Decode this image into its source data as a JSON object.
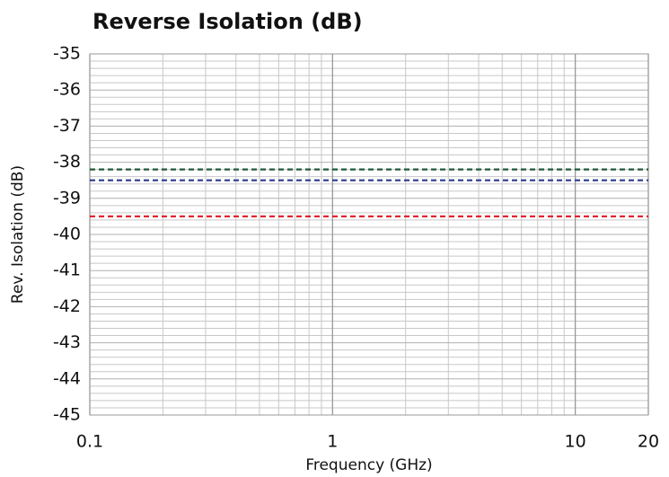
{
  "chart_data": {
    "type": "line",
    "title": "Reverse Isolation (dB)",
    "x_label": "Frequency (GHz)",
    "y_label": "Rev. Isolation (dB)",
    "x": [
      0.1,
      20
    ],
    "series": [
      {
        "color": "#1e5a3a",
        "values": [
          -38.2,
          -38.2
        ]
      },
      {
        "color": "#2b3b8c",
        "values": [
          -38.5,
          -38.5
        ]
      },
      {
        "color": "#e3232f",
        "values": [
          -39.5,
          -39.5
        ]
      }
    ],
    "xlim": [
      0.1,
      20
    ],
    "xticks": [
      0.1,
      1,
      10,
      20
    ],
    "x_log": true,
    "ylim": [
      -45,
      -35
    ],
    "yticks": [
      -45,
      -44,
      -43,
      -42,
      -41,
      -40,
      -39,
      -38,
      -37,
      -36,
      -35
    ],
    "grid": true,
    "minor_grid": true,
    "line_style": "dashed"
  }
}
